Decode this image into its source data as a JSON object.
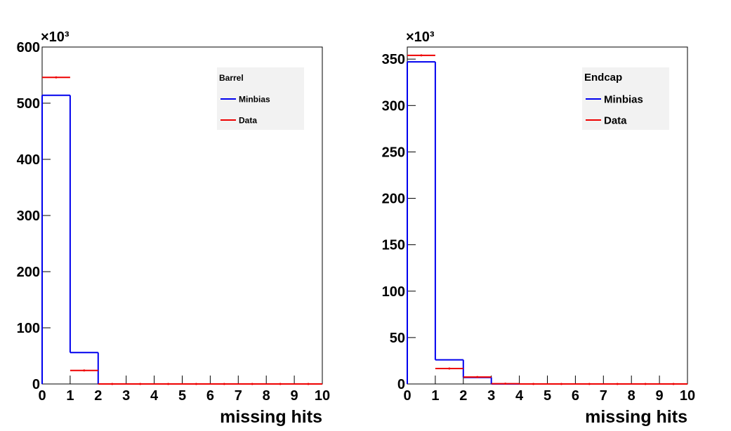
{
  "chart_data": [
    {
      "type": "histogram",
      "multiplier": "×10³",
      "xlabel": "missing hits",
      "legend_title": "Barrel",
      "bins": [
        0,
        1,
        2,
        3,
        4,
        5,
        6,
        7,
        8,
        9,
        10
      ],
      "series": [
        {
          "name": "Minbias",
          "color": "#0000ee",
          "style": "step",
          "values": [
            514,
            56,
            0,
            0,
            0,
            0,
            0,
            0,
            0,
            0
          ]
        },
        {
          "name": "Data",
          "color": "#ee0000",
          "style": "marker",
          "values": [
            546,
            24,
            0,
            0,
            0,
            0,
            0,
            0,
            0,
            0
          ]
        }
      ],
      "xlim": [
        0,
        10
      ],
      "xticks": [
        0,
        1,
        2,
        3,
        4,
        5,
        6,
        7,
        8,
        9,
        10
      ],
      "ylim": [
        0,
        600
      ],
      "yticks": [
        0,
        100,
        200,
        300,
        400,
        500,
        600
      ],
      "legend": "upper right"
    },
    {
      "type": "histogram",
      "multiplier": "×10³",
      "xlabel": "missing hits",
      "legend_title": "Endcap",
      "bins": [
        0,
        1,
        2,
        3,
        4,
        5,
        6,
        7,
        8,
        9,
        10
      ],
      "series": [
        {
          "name": "Minbias",
          "color": "#0000ee",
          "style": "step",
          "values": [
            347,
            26,
            7,
            0,
            0,
            0,
            0,
            0,
            0,
            0
          ]
        },
        {
          "name": "Data",
          "color": "#ee0000",
          "style": "marker",
          "values": [
            354,
            16.6,
            7.5,
            0.3,
            0,
            0,
            0,
            0,
            0,
            0
          ]
        }
      ],
      "xlim": [
        0,
        10
      ],
      "xticks": [
        0,
        1,
        2,
        3,
        4,
        5,
        6,
        7,
        8,
        9,
        10
      ],
      "ylim": [
        0,
        363
      ],
      "yticks": [
        0,
        50,
        100,
        150,
        200,
        250,
        300,
        350
      ],
      "legend": "upper right"
    }
  ]
}
